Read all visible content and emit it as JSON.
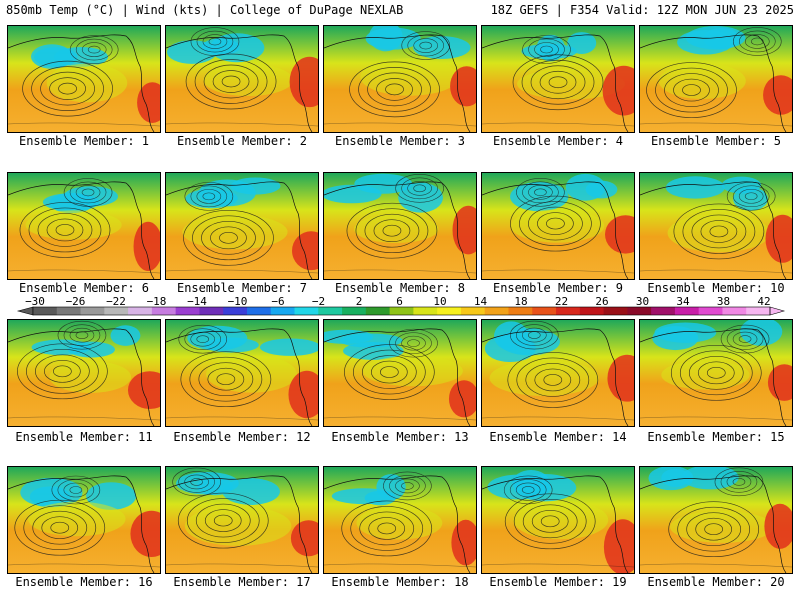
{
  "header": {
    "left": "850mb Temp (°C) | Wind (kts) | College of DuPage NEXLAB",
    "right": "18Z GEFS | F354 Valid: 12Z MON JUN 23 2025"
  },
  "members": [
    "Ensemble Member: 1",
    "Ensemble Member: 2",
    "Ensemble Member: 3",
    "Ensemble Member: 4",
    "Ensemble Member: 5",
    "Ensemble Member: 6",
    "Ensemble Member: 7",
    "Ensemble Member: 8",
    "Ensemble Member: 9",
    "Ensemble Member: 10",
    "Ensemble Member: 11",
    "Ensemble Member: 12",
    "Ensemble Member: 13",
    "Ensemble Member: 14",
    "Ensemble Member: 15",
    "Ensemble Member: 16",
    "Ensemble Member: 17",
    "Ensemble Member: 18",
    "Ensemble Member: 19",
    "Ensemble Member: 20"
  ],
  "colorbar": {
    "labels": [
      "−30",
      "−26",
      "−22",
      "−18",
      "−14",
      "−10",
      "−6",
      "−2",
      "2",
      "6",
      "10",
      "14",
      "18",
      "22",
      "26",
      "30",
      "34",
      "38",
      "42"
    ],
    "colors": [
      "#5a5a5a",
      "#7a7a7a",
      "#9a9a9a",
      "#b8b8b8",
      "#d8b4e6",
      "#c77de0",
      "#9b3fd0",
      "#6f2fb8",
      "#3b3fd8",
      "#1f6fe8",
      "#18a8f0",
      "#22d6e8",
      "#1fc9a0",
      "#19b060",
      "#2e9a2c",
      "#8fc318",
      "#d8e41a",
      "#f6f01e",
      "#f7c81a",
      "#f2a21a",
      "#ee7d14",
      "#e8521a",
      "#d8281c",
      "#c0141a",
      "#9a1018",
      "#8a0a2a",
      "#a0106a",
      "#c81ea8",
      "#e04ad0",
      "#f088e4",
      "#f6b6f0"
    ]
  },
  "palette": {
    "cold": "#18c8e8",
    "cool": "#1fa85a",
    "mild": "#d8e41a",
    "warm": "#f0a21a",
    "hot": "#e0301c",
    "ocean": "#f6b030"
  }
}
